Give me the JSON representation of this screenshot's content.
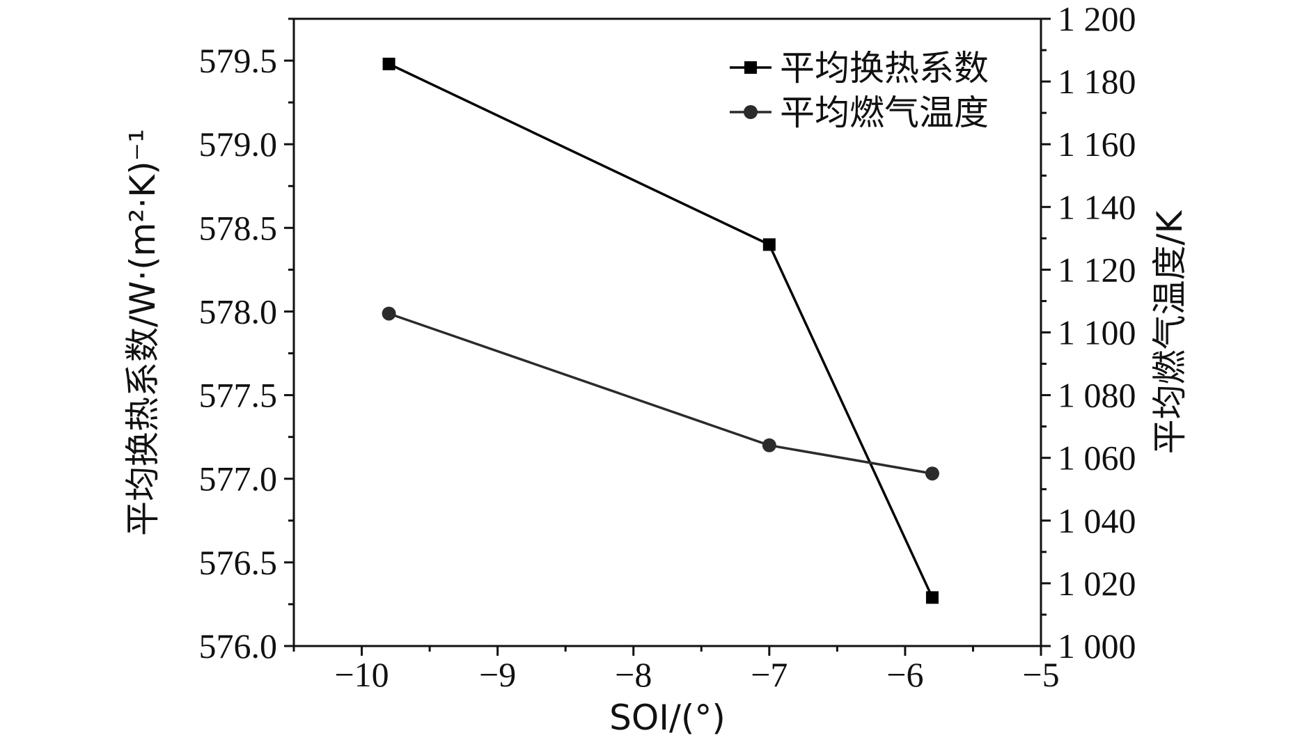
{
  "chart_data": {
    "type": "line",
    "x_label": "SOI/(°)",
    "y_left_label": "平均换热系数/W·(m²·K)⁻¹",
    "y_right_label": "平均燃气温度/K",
    "x_range": [
      -10.5,
      -5
    ],
    "y_left_range": [
      576.0,
      579.75
    ],
    "y_right_range": [
      1000,
      1200
    ],
    "x_ticks": [
      {
        "value": -10,
        "label": "−10"
      },
      {
        "value": -9,
        "label": "−9"
      },
      {
        "value": -8,
        "label": "−8"
      },
      {
        "value": -7,
        "label": "−7"
      },
      {
        "value": -6,
        "label": "−6"
      },
      {
        "value": -5,
        "label": "−5"
      }
    ],
    "y_left_ticks": [
      {
        "value": 576.0,
        "label": "576.0"
      },
      {
        "value": 576.5,
        "label": "576.5"
      },
      {
        "value": 577.0,
        "label": "577.0"
      },
      {
        "value": 577.5,
        "label": "577.5"
      },
      {
        "value": 578.0,
        "label": "578.0"
      },
      {
        "value": 578.5,
        "label": "578.5"
      },
      {
        "value": 579.0,
        "label": "579.0"
      },
      {
        "value": 579.5,
        "label": "579.5"
      }
    ],
    "y_right_ticks": [
      {
        "value": 1000,
        "label": "1 000"
      },
      {
        "value": 1020,
        "label": "1 020"
      },
      {
        "value": 1040,
        "label": "1 040"
      },
      {
        "value": 1060,
        "label": "1 060"
      },
      {
        "value": 1080,
        "label": "1 080"
      },
      {
        "value": 1100,
        "label": "1 100"
      },
      {
        "value": 1120,
        "label": "1 120"
      },
      {
        "value": 1140,
        "label": "1 140"
      },
      {
        "value": 1160,
        "label": "1 160"
      },
      {
        "value": 1180,
        "label": "1 180"
      },
      {
        "value": 1200,
        "label": "1 200"
      }
    ],
    "series": [
      {
        "name": "平均换热系数",
        "axis": "left",
        "marker": "square",
        "color": "#000000",
        "points": [
          {
            "x": -9.8,
            "y": 579.48
          },
          {
            "x": -7.0,
            "y": 578.4
          },
          {
            "x": -5.8,
            "y": 576.29
          }
        ]
      },
      {
        "name": "平均燃气温度",
        "axis": "right",
        "marker": "circle",
        "color": "#2b2b2b",
        "points": [
          {
            "x": -9.8,
            "y": 1106
          },
          {
            "x": -7.0,
            "y": 1064
          },
          {
            "x": -5.8,
            "y": 1055
          }
        ]
      }
    ],
    "legend_position": "top-right",
    "grid": false
  }
}
